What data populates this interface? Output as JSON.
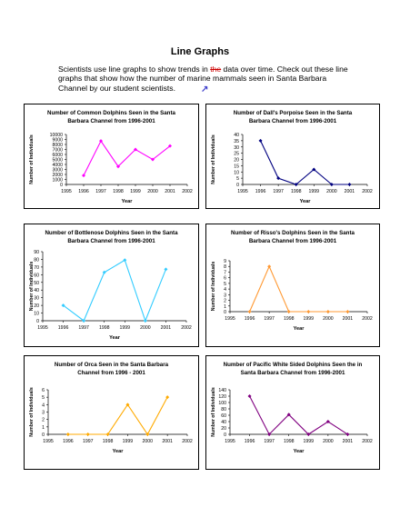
{
  "page": {
    "title": "Line Graphs",
    "intro_before": "Scientists use line graphs to show trends in ",
    "intro_struck": "the",
    "intro_after": " data over time. Check out these line graphs that show how the number of marine mammals seen in Santa Barbara Channel by our student scientists."
  },
  "chart_data": [
    {
      "type": "line",
      "title": [
        "Number of Common Dolphins Seen in the Santa",
        "Barbara Channel from 1996-2001"
      ],
      "xlabel": "Year",
      "ylabel": "Number of Individuals",
      "x_ticks": [
        "1995",
        "1996",
        "1997",
        "1998",
        "1999",
        "2000",
        "2001",
        "2002"
      ],
      "y_ticks": [
        "0",
        "1000",
        "2000",
        "3000",
        "4000",
        "5000",
        "6000",
        "7000",
        "8000",
        "9000",
        "10000"
      ],
      "ylim": [
        0,
        10000
      ],
      "color": "#ff00ff",
      "marker": "diamond",
      "x": [
        1996,
        1997,
        1998,
        1999,
        2000,
        2001
      ],
      "values": [
        1800,
        8700,
        3600,
        7000,
        5000,
        7700
      ]
    },
    {
      "type": "line",
      "title": [
        "Number of Dall's Porpoise Seen in the Santa",
        "Barbara Channel from 1996-2001"
      ],
      "xlabel": "Year",
      "ylabel": "Number of Individuals",
      "x_ticks": [
        "1995",
        "1996",
        "1997",
        "1998",
        "1999",
        "2000",
        "2001",
        "2002"
      ],
      "y_ticks": [
        "0",
        "5",
        "10",
        "15",
        "20",
        "25",
        "30",
        "35",
        "40"
      ],
      "ylim": [
        0,
        40
      ],
      "color": "#000080",
      "marker": "diamond",
      "x": [
        1996,
        1997,
        1998,
        1999,
        2000,
        2001
      ],
      "values": [
        35,
        5,
        0,
        12,
        0,
        0
      ]
    },
    {
      "type": "line",
      "title": [
        "Number of Bottlenose Dolphins Seen in the Santa",
        "Barbara Channel from 1996-2001"
      ],
      "xlabel": "Year",
      "ylabel": "Number of Individuals",
      "x_ticks": [
        "1995",
        "1996",
        "1997",
        "1998",
        "1999",
        "2000",
        "2001",
        "2002"
      ],
      "y_ticks": [
        "0",
        "10",
        "20",
        "30",
        "40",
        "50",
        "60",
        "70",
        "80",
        "90"
      ],
      "ylim": [
        0,
        90
      ],
      "color": "#33ccff",
      "marker": "diamond",
      "x": [
        1996,
        1997,
        1998,
        1999,
        2000,
        2001
      ],
      "values": [
        20,
        0,
        63,
        79,
        0,
        67
      ]
    },
    {
      "type": "line",
      "title": [
        "Number of Risso's Dolphins Seen in the Santa",
        "Barbara Channel from 1996-2001"
      ],
      "xlabel": "Year",
      "ylabel": "Number of Individuals",
      "x_ticks": [
        "1995",
        "1996",
        "1997",
        "1998",
        "1999",
        "2000",
        "2001",
        "2002"
      ],
      "y_ticks": [
        "0",
        "1",
        "2",
        "3",
        "4",
        "5",
        "6",
        "7",
        "8",
        "9"
      ],
      "ylim": [
        0,
        9
      ],
      "color": "#ff9933",
      "marker": "diamond",
      "x": [
        1996,
        1997,
        1998,
        1999,
        2000,
        2001
      ],
      "values": [
        0,
        8,
        0,
        0,
        0,
        0
      ]
    },
    {
      "type": "line",
      "title": [
        "Number of Orca Seen in the Santa Barbara",
        "Channel from 1996 - 2001"
      ],
      "xlabel": "Year",
      "ylabel": "Number of Individuals",
      "x_ticks": [
        "1995",
        "1996",
        "1997",
        "1998",
        "1999",
        "2000",
        "2001",
        "2002"
      ],
      "y_ticks": [
        "0",
        "1",
        "2",
        "3",
        "4",
        "5",
        "6"
      ],
      "ylim": [
        0,
        6
      ],
      "color": "#ffaa00",
      "marker": "diamond",
      "x": [
        1996,
        1997,
        1998,
        1999,
        2000,
        2001
      ],
      "values": [
        0,
        0,
        0,
        4,
        0,
        5
      ]
    },
    {
      "type": "line",
      "title": [
        "Number of Pacific White Sided Dolphins Seen the in",
        "Santa Barbara Channel from 1996-2001"
      ],
      "xlabel": "Year",
      "ylabel": "Number of Individuals",
      "x_ticks": [
        "1995",
        "1996",
        "1997",
        "1998",
        "1999",
        "2000",
        "2001",
        "2002"
      ],
      "y_ticks": [
        "0",
        "20",
        "40",
        "60",
        "80",
        "100",
        "120",
        "140"
      ],
      "ylim": [
        0,
        140
      ],
      "color": "#800080",
      "marker": "diamond",
      "x": [
        1996,
        1997,
        1998,
        1999,
        2000,
        2001
      ],
      "values": [
        120,
        0,
        62,
        0,
        40,
        0
      ]
    }
  ]
}
